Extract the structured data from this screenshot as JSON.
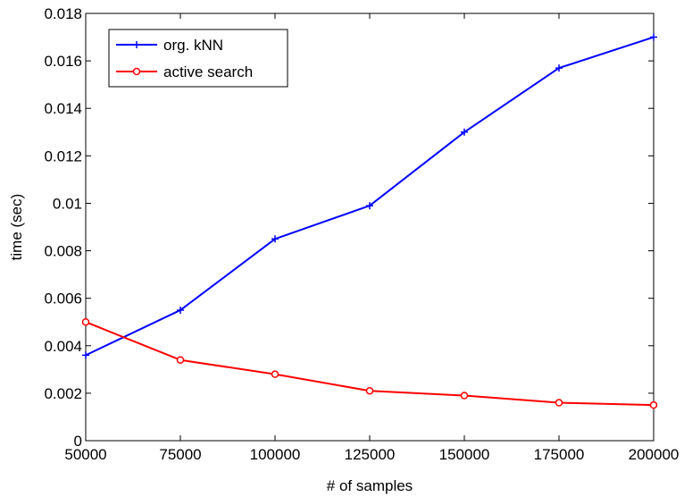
{
  "chart_data": {
    "type": "line",
    "title": "",
    "xlabel": "# of samples",
    "ylabel": "time (sec)",
    "x": [
      50000,
      75000,
      100000,
      125000,
      150000,
      175000,
      200000
    ],
    "xlim": [
      50000,
      200000
    ],
    "ylim": [
      0,
      0.018
    ],
    "xticks": [
      50000,
      75000,
      100000,
      125000,
      150000,
      175000,
      200000
    ],
    "xtick_labels": [
      "50000",
      "75000",
      "100000",
      "125000",
      "150000",
      "175000",
      "200000"
    ],
    "yticks": [
      0,
      0.002,
      0.004,
      0.006,
      0.008,
      0.01,
      0.012,
      0.014,
      0.016,
      0.018
    ],
    "ytick_labels": [
      "0",
      "0.002",
      "0.004",
      "0.006",
      "0.008",
      "0.01",
      "0.012",
      "0.014",
      "0.016",
      "0.018"
    ],
    "grid": false,
    "legend_position": "top-left",
    "series": [
      {
        "name": "org. kNN",
        "color": "#0000ff",
        "marker": "plus",
        "values": [
          0.0036,
          0.0055,
          0.0085,
          0.0099,
          0.013,
          0.0157,
          0.017
        ]
      },
      {
        "name": "active search",
        "color": "#ff0000",
        "marker": "circle",
        "values": [
          0.005,
          0.0034,
          0.0028,
          0.0021,
          0.0019,
          0.0016,
          0.0015
        ]
      }
    ]
  }
}
